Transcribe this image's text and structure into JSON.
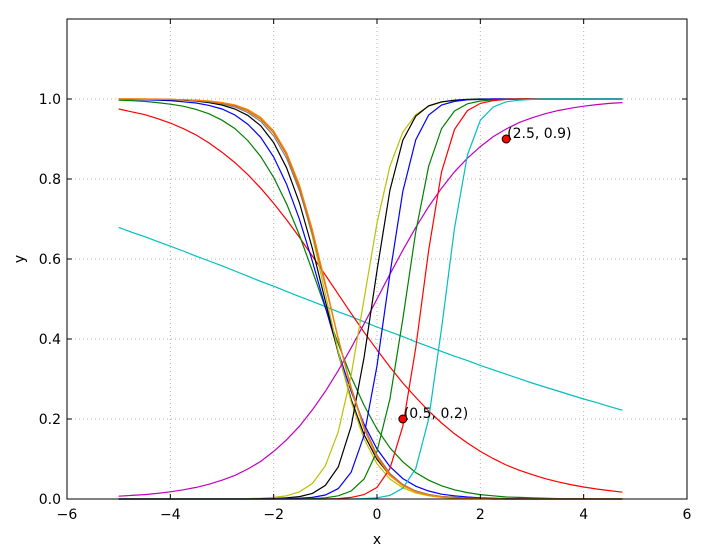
{
  "chart_data": {
    "type": "line",
    "xlabel": "x",
    "ylabel": "y",
    "xlim": [
      -6,
      6
    ],
    "ylim": [
      0,
      1.2
    ],
    "grid": true,
    "x_ticks": [
      "−6",
      "−4",
      "−2",
      "0",
      "2",
      "4",
      "6"
    ],
    "y_ticks": [
      "0.0",
      "0.2",
      "0.4",
      "0.6",
      "0.8",
      "1.0"
    ],
    "x": [
      -5,
      -4.75,
      -4.5,
      -4.25,
      -4,
      -3.75,
      -3.5,
      -3.25,
      -3,
      -2.75,
      -2.5,
      -2.25,
      -2,
      -1.75,
      -1.5,
      -1.25,
      -1,
      -0.75,
      -0.5,
      -0.25,
      0,
      0.25,
      0.5,
      0.75,
      1,
      1.25,
      1.5,
      1.75,
      2,
      2.25,
      2.5,
      2.75,
      3,
      3.25,
      3.5,
      3.75,
      4,
      4.25,
      4.5,
      4.75
    ],
    "series": [
      {
        "color": "#00bfbf",
        "values": [
          0.679,
          0.667,
          0.656,
          0.644,
          0.632,
          0.62,
          0.607,
          0.595,
          0.583,
          0.57,
          0.557,
          0.544,
          0.532,
          0.519,
          0.506,
          0.494,
          0.481,
          0.468,
          0.456,
          0.443,
          0.43,
          0.418,
          0.406,
          0.393,
          0.381,
          0.369,
          0.357,
          0.346,
          0.334,
          0.323,
          0.312,
          0.301,
          0.29,
          0.28,
          0.27,
          0.26,
          0.25,
          0.241,
          0.231,
          0.222
        ]
      },
      {
        "color": "#ff0000",
        "values": [
          0.975,
          0.968,
          0.961,
          0.951,
          0.94,
          0.926,
          0.91,
          0.89,
          0.867,
          0.841,
          0.811,
          0.777,
          0.739,
          0.698,
          0.654,
          0.607,
          0.56,
          0.512,
          0.464,
          0.417,
          0.373,
          0.33,
          0.29,
          0.254,
          0.22,
          0.19,
          0.163,
          0.14,
          0.119,
          0.101,
          0.085,
          0.072,
          0.061,
          0.051,
          0.043,
          0.036,
          0.03,
          0.025,
          0.021,
          0.017
        ]
      },
      {
        "color": "#008000",
        "values": [
          0.997,
          0.996,
          0.994,
          0.991,
          0.987,
          0.982,
          0.974,
          0.963,
          0.947,
          0.926,
          0.896,
          0.856,
          0.804,
          0.738,
          0.659,
          0.57,
          0.478,
          0.388,
          0.305,
          0.234,
          0.175,
          0.128,
          0.093,
          0.066,
          0.047,
          0.033,
          0.023,
          0.016,
          0.011,
          0.008,
          0.005,
          0.004,
          0.003,
          0.002,
          0.001,
          0.001,
          0.001,
          0,
          0,
          0
        ]
      },
      {
        "color": "#0000ff",
        "values": [
          0.999,
          0.999,
          0.998,
          0.997,
          0.996,
          0.993,
          0.99,
          0.984,
          0.975,
          0.96,
          0.937,
          0.904,
          0.855,
          0.787,
          0.699,
          0.594,
          0.48,
          0.368,
          0.269,
          0.187,
          0.125,
          0.081,
          0.051,
          0.032,
          0.02,
          0.012,
          0.008,
          0.005,
          0.003,
          0.002,
          0.001,
          0.001,
          0,
          0,
          0,
          0,
          0,
          0,
          0,
          0
        ]
      },
      {
        "color": "#000000",
        "values": [
          1,
          0.999,
          0.999,
          0.999,
          0.998,
          0.997,
          0.995,
          0.991,
          0.985,
          0.975,
          0.959,
          0.933,
          0.891,
          0.828,
          0.74,
          0.626,
          0.495,
          0.364,
          0.249,
          0.161,
          0.099,
          0.059,
          0.034,
          0.02,
          0.011,
          0.006,
          0.004,
          0.002,
          0.001,
          0.001,
          0,
          0,
          0,
          0,
          0,
          0,
          0,
          0,
          0,
          0
        ]
      },
      {
        "color": "#bfbf00",
        "values": [
          1,
          1,
          0.999,
          0.999,
          0.999,
          0.998,
          0.997,
          0.995,
          0.991,
          0.985,
          0.974,
          0.954,
          0.92,
          0.864,
          0.776,
          0.656,
          0.513,
          0.368,
          0.243,
          0.15,
          0.088,
          0.05,
          0.028,
          0.015,
          0.008,
          0.004,
          0.002,
          0.001,
          0.001,
          0,
          0,
          0,
          0,
          0,
          0,
          0,
          0,
          0,
          0,
          0
        ]
      },
      {
        "color": "#bf00bf",
        "values": [
          0.007,
          0.009,
          0.011,
          0.014,
          0.018,
          0.023,
          0.029,
          0.037,
          0.047,
          0.059,
          0.075,
          0.094,
          0.119,
          0.148,
          0.182,
          0.223,
          0.269,
          0.321,
          0.378,
          0.438,
          0.5,
          0.562,
          0.622,
          0.679,
          0.731,
          0.777,
          0.818,
          0.852,
          0.881,
          0.906,
          0.925,
          0.941,
          0.953,
          0.963,
          0.971,
          0.977,
          0.982,
          0.986,
          0.989,
          0.991
        ]
      },
      {
        "color": "#bfbf00",
        "values": [
          0,
          0,
          0,
          0,
          0,
          0,
          0,
          0,
          0,
          0,
          0.001,
          0.002,
          0.004,
          0.008,
          0.018,
          0.039,
          0.083,
          0.168,
          0.31,
          0.5,
          0.69,
          0.832,
          0.917,
          0.961,
          0.982,
          0.992,
          0.996,
          0.998,
          0.999,
          1,
          1,
          1,
          1,
          1,
          1,
          1,
          1,
          1,
          1,
          1
        ]
      },
      {
        "color": "#000000",
        "values": [
          0,
          0,
          0,
          0,
          0,
          0,
          0,
          0,
          0,
          0,
          0,
          0.001,
          0.001,
          0.003,
          0.006,
          0.014,
          0.034,
          0.08,
          0.182,
          0.354,
          0.571,
          0.772,
          0.897,
          0.957,
          0.983,
          0.993,
          0.997,
          0.999,
          1,
          1,
          1,
          1,
          1,
          1,
          1,
          1,
          1,
          1,
          1,
          1
        ]
      },
      {
        "color": "#0000ff",
        "values": [
          0,
          0,
          0,
          0,
          0,
          0,
          0,
          0,
          0,
          0,
          0,
          0,
          0,
          0.001,
          0.002,
          0.004,
          0.01,
          0.026,
          0.067,
          0.159,
          0.333,
          0.562,
          0.769,
          0.898,
          0.96,
          0.985,
          0.994,
          0.998,
          0.999,
          1,
          1,
          1,
          1,
          1,
          1,
          1,
          1,
          1,
          1,
          1
        ]
      },
      {
        "color": "#008000",
        "values": [
          0,
          0,
          0,
          0,
          0,
          0,
          0,
          0,
          0,
          0,
          0,
          0,
          0,
          0,
          0,
          0.001,
          0.003,
          0.008,
          0.02,
          0.05,
          0.119,
          0.25,
          0.45,
          0.668,
          0.832,
          0.926,
          0.97,
          0.988,
          0.995,
          0.998,
          0.999,
          1,
          1,
          1,
          1,
          1,
          1,
          1,
          1,
          1
        ]
      },
      {
        "color": "#ff0000",
        "values": [
          0,
          0,
          0,
          0,
          0,
          0,
          0,
          0,
          0,
          0,
          0,
          0,
          0,
          0,
          0,
          0,
          0,
          0.001,
          0.004,
          0.011,
          0.029,
          0.076,
          0.182,
          0.378,
          0.622,
          0.818,
          0.924,
          0.971,
          0.989,
          0.996,
          0.999,
          1,
          1,
          1,
          1,
          1,
          1,
          1,
          1,
          1
        ]
      },
      {
        "color": "#00bfbf",
        "values": [
          0,
          0,
          0,
          0,
          0,
          0,
          0,
          0,
          0,
          0,
          0,
          0,
          0,
          0,
          0,
          0,
          0,
          0,
          0,
          0.001,
          0.003,
          0.009,
          0.027,
          0.076,
          0.2,
          0.427,
          0.677,
          0.86,
          0.947,
          0.98,
          0.993,
          0.997,
          0.999,
          1,
          1,
          1,
          1,
          1,
          1,
          1
        ]
      },
      {
        "color": "#808080",
        "values": [
          1,
          1,
          1,
          0.999,
          0.999,
          0.998,
          0.996,
          0.993,
          0.988,
          0.98,
          0.966,
          0.944,
          0.908,
          0.852,
          0.77,
          0.662,
          0.534,
          0.401,
          0.279,
          0.181,
          0.11,
          0.064,
          0.036,
          0.02,
          0.011,
          0.006,
          0.003,
          0.002,
          0.001,
          0.001,
          0,
          0,
          0,
          0,
          0,
          0,
          0,
          0,
          0,
          0
        ]
      },
      {
        "color": "#d2691e",
        "values": [
          1,
          1,
          1,
          0.999,
          0.999,
          0.998,
          0.997,
          0.994,
          0.99,
          0.983,
          0.97,
          0.949,
          0.915,
          0.86,
          0.778,
          0.668,
          0.537,
          0.401,
          0.277,
          0.178,
          0.107,
          0.062,
          0.035,
          0.019,
          0.01,
          0.006,
          0.003,
          0.002,
          0.001,
          0,
          0,
          0,
          0,
          0,
          0,
          0,
          0,
          0,
          0,
          0
        ]
      },
      {
        "color": "#ff7f00",
        "values": [
          1,
          1,
          1,
          1,
          0.999,
          0.998,
          0.997,
          0.995,
          0.991,
          0.985,
          0.973,
          0.953,
          0.92,
          0.866,
          0.785,
          0.673,
          0.54,
          0.401,
          0.275,
          0.175,
          0.104,
          0.059,
          0.033,
          0.018,
          0.01,
          0.005,
          0.003,
          0.001,
          0.001,
          0,
          0,
          0,
          0,
          0,
          0,
          0,
          0,
          0,
          0,
          0
        ]
      }
    ],
    "points": [
      {
        "x": 0.5,
        "y": 0.2,
        "label": "(0.5, 0.2)"
      },
      {
        "x": 2.5,
        "y": 0.9,
        "label": "(2.5, 0.9)"
      }
    ]
  }
}
